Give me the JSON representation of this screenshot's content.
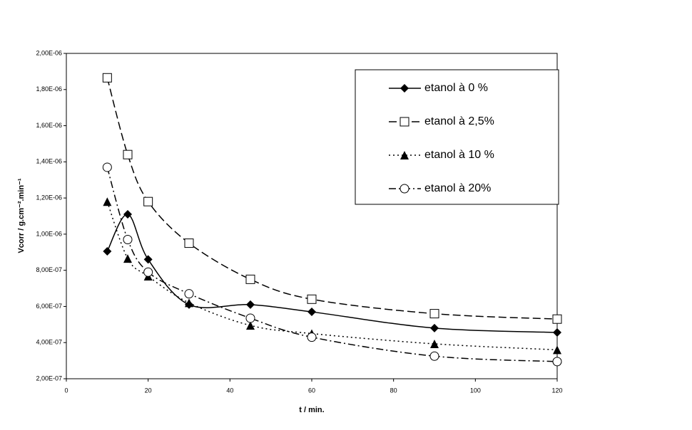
{
  "chart_data": {
    "type": "line",
    "xlabel": "t / min.",
    "ylabel": "Vcorr / g.cm⁻².min⁻¹",
    "x": [
      10,
      15,
      20,
      30,
      45,
      60,
      90,
      120
    ],
    "xlim": [
      0,
      120
    ],
    "xticks": [
      0,
      20,
      40,
      60,
      80,
      100,
      120
    ],
    "ylim": [
      2e-07,
      2e-06
    ],
    "yticks": [
      {
        "value": 2e-07,
        "label": "2,00E-07"
      },
      {
        "value": 4e-07,
        "label": "4,00E-07"
      },
      {
        "value": 6e-07,
        "label": "6,00E-07"
      },
      {
        "value": 8e-07,
        "label": "8,00E-07"
      },
      {
        "value": 1e-06,
        "label": "1,00E-06"
      },
      {
        "value": 1.2e-06,
        "label": "1,20E-06"
      },
      {
        "value": 1.4e-06,
        "label": "1,40E-06"
      },
      {
        "value": 1.6e-06,
        "label": "1,60E-06"
      },
      {
        "value": 1.8e-06,
        "label": "1,80E-06"
      },
      {
        "value": 2e-06,
        "label": "2,00E-06"
      }
    ],
    "legend": "upper right",
    "series": [
      {
        "name": "etanol à 0 %",
        "color": "#000000",
        "marker": "diamond",
        "dash": "solid",
        "values": [
          9.05e-07,
          1.11e-06,
          8.6e-07,
          6.1e-07,
          6.1e-07,
          5.7e-07,
          4.8e-07,
          4.56e-07
        ]
      },
      {
        "name": "etanol à 2,5%",
        "color": "#000000",
        "marker": "square",
        "dash": "dashed",
        "values": [
          1.865e-06,
          1.44e-06,
          1.18e-06,
          9.5e-07,
          7.5e-07,
          6.4e-07,
          5.6e-07,
          5.3e-07
        ]
      },
      {
        "name": "etanol à 10 %",
        "color": "#000000",
        "marker": "triangle",
        "dash": "dotted",
        "values": [
          1.18e-06,
          8.65e-07,
          7.67e-07,
          6.2e-07,
          4.95e-07,
          4.5e-07,
          3.93e-07,
          3.6e-07
        ]
      },
      {
        "name": "etanol à 20%",
        "color": "#000000",
        "marker": "circle",
        "dash": "dashdot",
        "values": [
          1.37e-06,
          9.7e-07,
          7.9e-07,
          6.7e-07,
          5.35e-07,
          4.3e-07,
          3.25e-07,
          2.95e-07
        ]
      }
    ]
  }
}
